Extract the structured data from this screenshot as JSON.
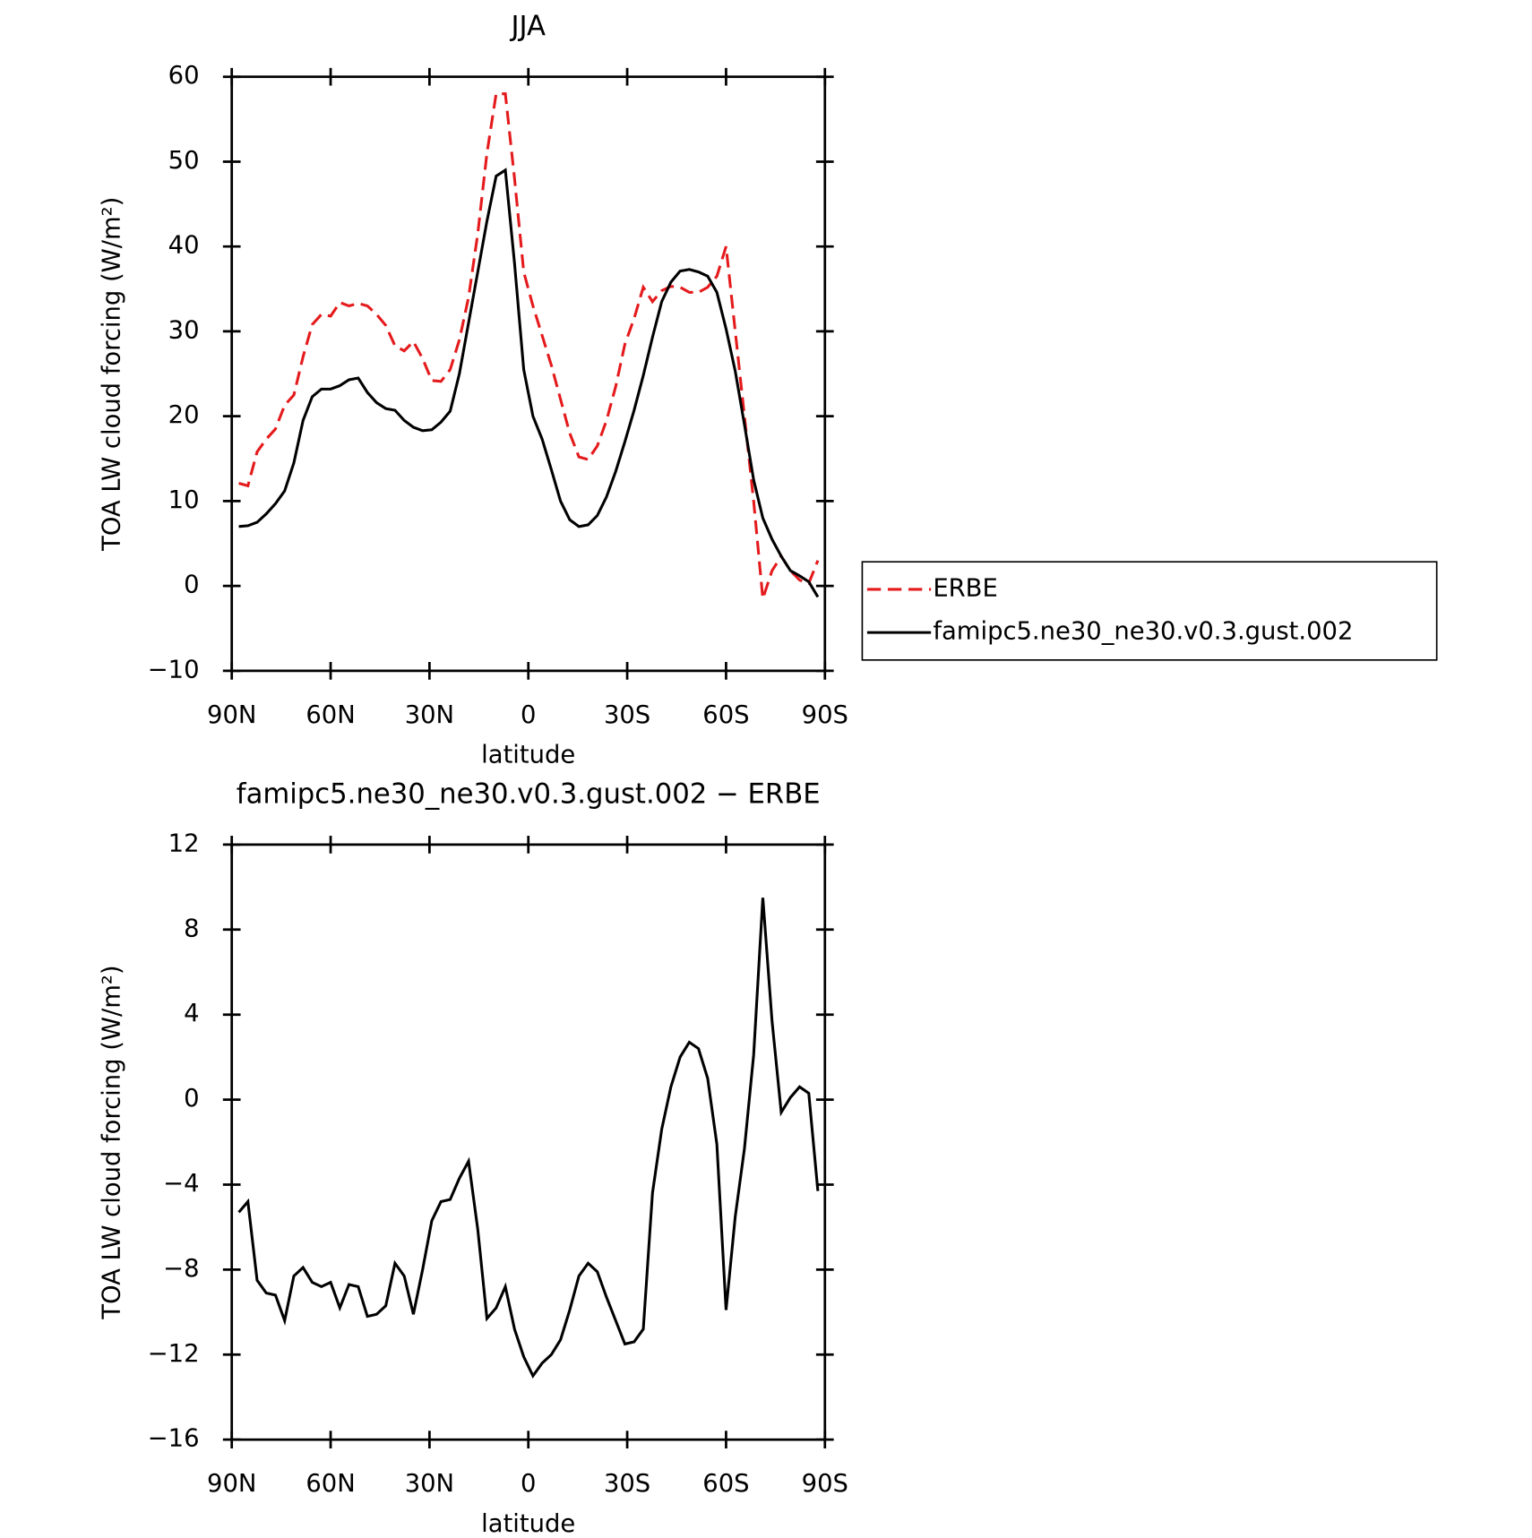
{
  "chart_data": [
    {
      "type": "line",
      "title": "JJA",
      "xlabel": "latitude",
      "ylabel": "TOA LW cloud forcing (W/m²)",
      "x": [
        87.86,
        85.1,
        82.31,
        79.53,
        76.74,
        73.95,
        71.16,
        68.37,
        65.58,
        62.79,
        60.0,
        57.21,
        54.42,
        51.63,
        48.84,
        46.05,
        43.26,
        40.47,
        37.67,
        34.88,
        32.09,
        29.3,
        26.51,
        23.72,
        20.93,
        18.14,
        15.35,
        12.56,
        9.77,
        6.98,
        4.19,
        1.4,
        -1.4,
        -4.19,
        -6.98,
        -9.77,
        -12.56,
        -15.35,
        -18.14,
        -20.93,
        -23.72,
        -26.51,
        -29.3,
        -32.09,
        -34.88,
        -37.67,
        -40.47,
        -43.26,
        -46.05,
        -48.84,
        -51.63,
        -54.42,
        -57.21,
        -60.0,
        -62.79,
        -65.58,
        -68.37,
        -71.16,
        -73.95,
        -76.74,
        -79.53,
        -82.31,
        -85.1,
        -87.86
      ],
      "series": [
        {
          "name": "ERBE",
          "color": "#e41a1c",
          "dashed": true,
          "values": [
            12.1,
            11.8,
            15.8,
            17.3,
            18.5,
            21.3,
            22.5,
            27,
            30.8,
            32,
            31.8,
            33.4,
            33,
            33.3,
            33,
            32,
            30.7,
            28.3,
            27.7,
            28.8,
            26.8,
            24.2,
            24.1,
            25.5,
            29,
            34,
            41.5,
            51,
            58,
            58,
            48,
            37,
            33,
            29.5,
            26,
            22,
            18,
            15.2,
            14.9,
            16.5,
            19.5,
            23.5,
            28.5,
            31.5,
            35.2,
            33.5,
            34.8,
            35.3,
            35.2,
            34.6,
            34.6,
            35.2,
            36.5,
            40,
            30,
            20,
            10,
            -1.5,
            1.8,
            3.5,
            1.8,
            0.7,
            0.3,
            3
          ]
        },
        {
          "name": "famipc5.ne30_ne30.v0.3.gust.002",
          "color": "#000000",
          "dashed": false,
          "values": [
            7,
            7.1,
            7.5,
            8.5,
            9.7,
            11.2,
            14.5,
            19.5,
            22.3,
            23.2,
            23.2,
            23.6,
            24.3,
            24.5,
            22.8,
            21.6,
            20.9,
            20.7,
            19.5,
            18.7,
            18.3,
            18.4,
            19.3,
            20.6,
            25,
            31,
            37,
            43,
            48.3,
            49,
            38,
            25.5,
            20,
            17.3,
            13.7,
            10,
            7.8,
            7,
            7.2,
            8.3,
            10.5,
            13.5,
            17,
            20.7,
            24.8,
            29.3,
            33.5,
            35.8,
            37.1,
            37.3,
            37,
            36.5,
            34.6,
            30.3,
            25.3,
            19,
            12.5,
            8,
            5.5,
            3.5,
            1.8,
            1.2,
            0.5,
            -1.3
          ]
        }
      ],
      "xlim": [
        90,
        -90
      ],
      "xticks": [
        {
          "value": 90,
          "label": "90N"
        },
        {
          "value": 60,
          "label": "60N"
        },
        {
          "value": 30,
          "label": "30N"
        },
        0,
        {
          "value": -30,
          "label": "30S"
        },
        {
          "value": -60,
          "label": "60S"
        },
        {
          "value": -90,
          "label": "90S"
        }
      ],
      "ylim": [
        -10,
        60
      ],
      "yticks": [
        {
          "value": -10,
          "label": "−10"
        },
        0,
        10,
        20,
        30,
        40,
        50,
        60
      ],
      "legend": "right"
    },
    {
      "type": "line",
      "title": "famipc5.ne30_ne30.v0.3.gust.002 − ERBE",
      "xlabel": "latitude",
      "ylabel": "TOA LW cloud forcing (W/m²)",
      "x": [
        87.86,
        85.1,
        82.31,
        79.53,
        76.74,
        73.95,
        71.16,
        68.37,
        65.58,
        62.79,
        60.0,
        57.21,
        54.42,
        51.63,
        48.84,
        46.05,
        43.26,
        40.47,
        37.67,
        34.88,
        32.09,
        29.3,
        26.51,
        23.72,
        20.93,
        18.14,
        15.35,
        12.56,
        9.77,
        6.98,
        4.19,
        1.4,
        -1.4,
        -4.19,
        -6.98,
        -9.77,
        -12.56,
        -15.35,
        -18.14,
        -20.93,
        -23.72,
        -26.51,
        -29.3,
        -32.09,
        -34.88,
        -37.67,
        -40.47,
        -43.26,
        -46.05,
        -48.84,
        -51.63,
        -54.42,
        -57.21,
        -60.0,
        -62.79,
        -65.58,
        -68.37,
        -71.16,
        -73.95,
        -76.74,
        -79.53,
        -82.31,
        -85.1,
        -87.86
      ],
      "series": [
        {
          "color": "#000000",
          "dashed": false,
          "values": [
            -5.3,
            -4.8,
            -8.5,
            -9.1,
            -9.2,
            -10.4,
            -8.3,
            -7.9,
            -8.6,
            -8.8,
            -8.6,
            -9.8,
            -8.7,
            -8.8,
            -10.2,
            -10.1,
            -9.7,
            -7.7,
            -8.3,
            -10.1,
            -8,
            -5.7,
            -4.8,
            -4.7,
            -3.7,
            -2.9,
            -6.1,
            -10.3,
            -9.8,
            -8.8,
            -10.8,
            -12.1,
            -13,
            -12.4,
            -12,
            -11.3,
            -9.9,
            -8.3,
            -7.7,
            -8.1,
            -9.3,
            -10.4,
            -11.5,
            -11.4,
            -10.8,
            -4.4,
            -1.4,
            0.6,
            2,
            2.7,
            2.4,
            1,
            -2.1,
            -9.9,
            -5.5,
            -2.3,
            2.1,
            9.5,
            3.7,
            -0.6,
            0.1,
            0.6,
            0.3,
            -4.3
          ]
        }
      ],
      "xlim": [
        90,
        -90
      ],
      "xticks": [
        {
          "value": 90,
          "label": "90N"
        },
        {
          "value": 60,
          "label": "60N"
        },
        {
          "value": 30,
          "label": "30N"
        },
        0,
        {
          "value": -30,
          "label": "30S"
        },
        {
          "value": -60,
          "label": "60S"
        },
        {
          "value": -90,
          "label": "90S"
        }
      ],
      "ylim": [
        -16,
        12
      ],
      "yticks": [
        {
          "value": -16,
          "label": "−16"
        },
        {
          "value": -12,
          "label": "−12"
        },
        {
          "value": -8,
          "label": "−8"
        },
        {
          "value": -4,
          "label": "−4"
        },
        0,
        4,
        8,
        12
      ]
    }
  ]
}
